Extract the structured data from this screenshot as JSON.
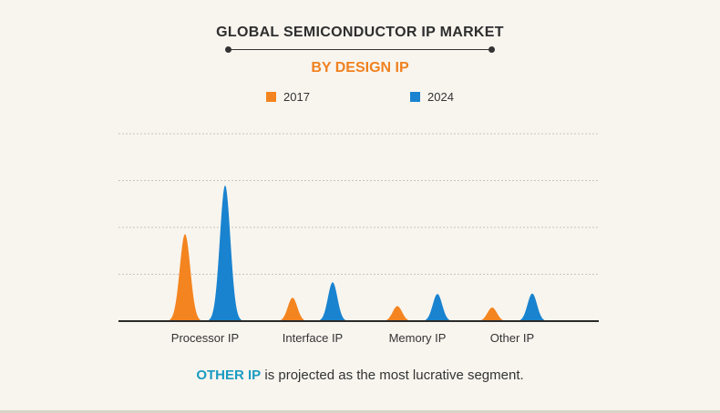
{
  "header": {
    "title": "GLOBAL SEMICONDUCTOR IP MARKET",
    "subtitle": "BY DESIGN IP"
  },
  "legend": [
    {
      "label": "2017",
      "color": "#f4841f"
    },
    {
      "label": "2024",
      "color": "#1983cf"
    }
  ],
  "chart_data": {
    "type": "area",
    "categories": [
      "Processor IP",
      "Interface IP",
      "Memory IP",
      "Other IP"
    ],
    "series": [
      {
        "name": "2017",
        "values": [
          1.86,
          0.5,
          0.32,
          0.29
        ],
        "color": "#f4841f"
      },
      {
        "name": "2024",
        "values": [
          2.9,
          0.83,
          0.58,
          0.59
        ],
        "color": "#1983cf"
      }
    ],
    "ylim": [
      0,
      4
    ],
    "grid": true,
    "legend_position": "top-center"
  },
  "footer": {
    "highlight": "OTHER IP",
    "text": " is projected as the most lucrative segment."
  }
}
